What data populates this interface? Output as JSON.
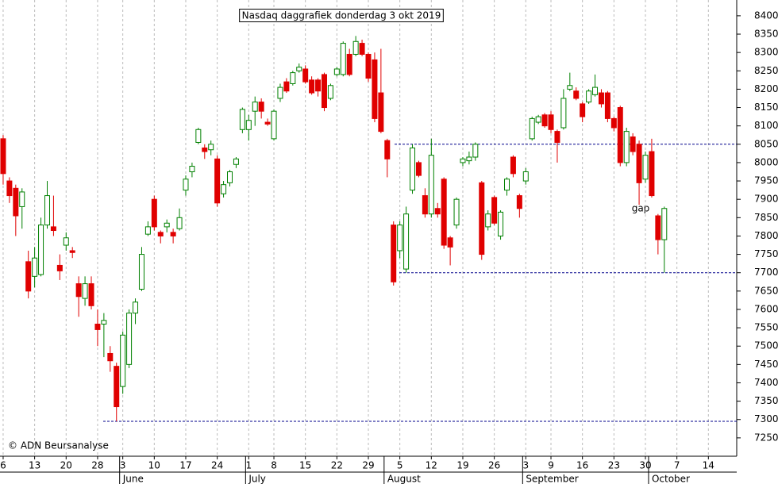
{
  "chart_data": {
    "type": "candlestick",
    "title": "Nasdaq daggrafiek donderdag 3 okt 2019",
    "categories": [
      "6",
      null,
      null,
      null,
      null,
      "13",
      null,
      null,
      null,
      null,
      "20",
      null,
      null,
      null,
      null,
      "28",
      null,
      null,
      null,
      "3",
      null,
      null,
      null,
      null,
      "10",
      null,
      null,
      null,
      null,
      "17",
      null,
      null,
      null,
      null,
      "24",
      null,
      null,
      null,
      null,
      "1",
      null,
      null,
      null,
      "8",
      null,
      null,
      null,
      null,
      "15",
      null,
      null,
      null,
      null,
      "22",
      null,
      null,
      null,
      null,
      "29",
      null,
      null,
      null,
      null,
      "5",
      null,
      null,
      null,
      null,
      "12",
      null,
      null,
      null,
      null,
      "19",
      null,
      null,
      null,
      null,
      "26",
      null,
      null,
      null,
      null,
      "3",
      null,
      null,
      null,
      "9",
      null,
      null,
      null,
      null,
      "16",
      null,
      null,
      null,
      null,
      "23",
      null,
      null,
      null,
      null,
      "30",
      null,
      null,
      null,
      null,
      "7",
      null,
      null,
      null,
      null,
      "14",
      null,
      null,
      null,
      null
    ],
    "months": [
      null,
      null,
      null,
      null,
      null,
      null,
      null,
      null,
      null,
      null,
      null,
      null,
      null,
      null,
      null,
      null,
      null,
      null,
      null,
      "June",
      null,
      null,
      null,
      null,
      null,
      null,
      null,
      null,
      null,
      null,
      null,
      null,
      null,
      null,
      null,
      null,
      null,
      null,
      null,
      "July",
      null,
      null,
      null,
      null,
      null,
      null,
      null,
      null,
      null,
      null,
      null,
      null,
      null,
      null,
      null,
      null,
      null,
      null,
      null,
      null,
      null,
      "August",
      null,
      null,
      null,
      null,
      null,
      null,
      null,
      null,
      null,
      null,
      null,
      null,
      null,
      null,
      null,
      null,
      null,
      null,
      null,
      null,
      null,
      "September",
      null,
      null,
      null,
      null,
      null,
      null,
      null,
      null,
      null,
      null,
      null,
      null,
      null,
      null,
      null,
      null,
      null,
      null,
      null,
      "October",
      null,
      null,
      null,
      null,
      null,
      null,
      null,
      null,
      null,
      null,
      null,
      null,
      null
    ],
    "open": [
      8065,
      7950,
      7930,
      7880,
      7730,
      7690,
      7695,
      7830,
      7825,
      7720,
      7775,
      7760,
      7670,
      7630,
      7670,
      7560,
      7560,
      7480,
      7445,
      7390,
      7450,
      7590,
      7655,
      7805,
      7900,
      7810,
      7825,
      7810,
      7820,
      7925,
      7975,
      8055,
      8040,
      8035,
      8010,
      7915,
      7945,
      7995,
      8090,
      8090,
      8140,
      8165,
      8110,
      8065,
      8175,
      8220,
      8215,
      8250,
      8255,
      8225,
      8225,
      8240,
      8175,
      8240,
      8240,
      8295,
      8295,
      8325,
      8295,
      8280,
      8190,
      8060,
      7830,
      7760,
      7710,
      7925,
      8000,
      7910,
      7860,
      7875,
      7955,
      7795,
      7830,
      8000,
      8005,
      8015,
      7945,
      7825,
      7905,
      7800,
      7925,
      8015,
      7910,
      7950,
      8065,
      8110,
      8130,
      8130,
      8085,
      8095,
      8200,
      8195,
      8160,
      8165,
      8185,
      8190,
      8190,
      8120,
      8150,
      8000,
      8070,
      8050,
      7955,
      8030,
      7855,
      7790,
      null,
      null,
      null,
      null,
      null,
      null,
      null,
      null,
      null,
      null,
      null
    ],
    "high": [
      8075,
      7960,
      7940,
      7930,
      7760,
      7770,
      7850,
      7950,
      7910,
      7750,
      7810,
      7770,
      7690,
      7690,
      7690,
      7600,
      7590,
      7500,
      7455,
      7540,
      7600,
      7630,
      7770,
      7840,
      7910,
      7815,
      7845,
      7820,
      7875,
      7965,
      8000,
      8095,
      8050,
      8060,
      8020,
      7950,
      7980,
      8015,
      8150,
      8130,
      8180,
      8175,
      8120,
      8145,
      8215,
      8230,
      8250,
      8270,
      8265,
      8235,
      8230,
      8245,
      8215,
      8260,
      8330,
      8310,
      8345,
      8335,
      8300,
      8300,
      8310,
      8065,
      7840,
      7840,
      7880,
      8050,
      8005,
      7930,
      8065,
      7890,
      7960,
      7800,
      7905,
      8015,
      8030,
      8055,
      7950,
      7870,
      7910,
      7870,
      7960,
      8020,
      7915,
      7985,
      8125,
      8130,
      8135,
      8140,
      8090,
      8200,
      8245,
      8205,
      8165,
      8200,
      8240,
      8200,
      8195,
      8125,
      8155,
      8095,
      8080,
      8060,
      8030,
      8065,
      7860,
      7880,
      null,
      null,
      null,
      null,
      null,
      null,
      null,
      null,
      null,
      null,
      null
    ],
    "low": [
      7940,
      7890,
      7800,
      7820,
      7630,
      7660,
      7690,
      7820,
      7800,
      7680,
      7760,
      7740,
      7580,
      7610,
      7600,
      7500,
      7470,
      7430,
      7295,
      7370,
      7440,
      7560,
      7650,
      7800,
      7815,
      7780,
      7810,
      7780,
      7815,
      7910,
      7960,
      8050,
      8010,
      8020,
      7880,
      7905,
      7935,
      7985,
      8080,
      8060,
      8100,
      8120,
      8100,
      8060,
      8165,
      8190,
      8210,
      8245,
      8215,
      8185,
      8180,
      8140,
      8170,
      8235,
      8235,
      8235,
      8290,
      8290,
      8220,
      8110,
      8080,
      7960,
      7665,
      7740,
      7700,
      7915,
      7960,
      7850,
      7850,
      7850,
      7765,
      7720,
      7820,
      7990,
      7995,
      8005,
      7735,
      7815,
      7830,
      7790,
      7910,
      7960,
      7850,
      7940,
      8060,
      8105,
      8095,
      8080,
      8000,
      8090,
      8195,
      8170,
      8110,
      8160,
      8180,
      8150,
      8110,
      8085,
      7990,
      7990,
      8020,
      7885,
      7945,
      7905,
      7750,
      7700,
      null,
      null,
      null,
      null,
      null,
      null,
      null,
      null,
      null,
      null,
      null
    ],
    "close": [
      7970,
      7910,
      7855,
      7920,
      7650,
      7740,
      7830,
      7910,
      7815,
      7705,
      7795,
      7755,
      7635,
      7670,
      7610,
      7545,
      7570,
      7460,
      7335,
      7530,
      7590,
      7620,
      7750,
      7825,
      7825,
      7800,
      7835,
      7800,
      7850,
      7955,
      7990,
      8090,
      8030,
      8050,
      7890,
      7940,
      7975,
      8010,
      8145,
      8115,
      8165,
      8140,
      8105,
      8140,
      8205,
      8195,
      8245,
      8260,
      8220,
      8190,
      8195,
      8150,
      8210,
      8255,
      8325,
      8240,
      8330,
      8295,
      8230,
      8120,
      8085,
      8010,
      7675,
      7830,
      7860,
      8040,
      7965,
      7860,
      8020,
      7860,
      7775,
      7770,
      7900,
      8010,
      8015,
      8050,
      7750,
      7860,
      7835,
      7865,
      7955,
      7970,
      7875,
      7975,
      8120,
      8125,
      8100,
      8090,
      8055,
      8175,
      8210,
      8175,
      8125,
      8195,
      8205,
      8160,
      8120,
      8095,
      8000,
      8085,
      8030,
      7945,
      8020,
      7910,
      7790,
      7875,
      null,
      null,
      null,
      null,
      null,
      null,
      null,
      null,
      null,
      null,
      null
    ],
    "ylim": [
      7200,
      8443
    ],
    "yticks": [
      7250,
      7300,
      7350,
      7400,
      7450,
      7500,
      7550,
      7600,
      7650,
      7700,
      7750,
      7800,
      7850,
      7900,
      7950,
      8000,
      8050,
      8100,
      8150,
      8200,
      8250,
      8300,
      8350,
      8400
    ],
    "up_color": "#008000",
    "down_color": "#e00000",
    "grid": true,
    "reference_lines": [
      8050,
      7700,
      7295
    ],
    "annotation": "gap",
    "credit": "© ADN Beursanalyse"
  }
}
